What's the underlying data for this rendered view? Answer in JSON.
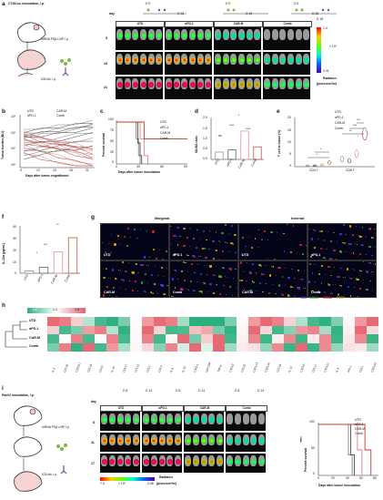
{
  "panels": {
    "a": {
      "label": "a",
      "model_text": "CT26-luc inoculation, i.p.",
      "treatment_text": "mRNA PSβ-LNP, i.p.",
      "icb_text": "ICB Ab, i.p.",
      "groups": [
        "UTD",
        "αPD-1",
        "CAR-M",
        "Comb"
      ],
      "days": [
        "9",
        "15",
        "21"
      ],
      "schedule_day_label": "day",
      "schedule_marks": [
        "D 9",
        "D 18",
        "D 9",
        "D 15",
        "D 9",
        "D 15",
        "D 18"
      ],
      "colorbar": {
        "max": "1.0",
        "min": "0.01",
        "unit": "× 10⁸",
        "title": "Radiance",
        "units": "(p/sec/cm²/sr)"
      }
    },
    "b": {
      "label": "b",
      "ylabel": "Tumor burden (BLI)",
      "xlabel": "Days after tumor engraftment",
      "legend": [
        "UTD",
        "CAR-M",
        "αPD-1",
        "Comb"
      ],
      "yticks": [
        "10⁹",
        "10⁸",
        "10⁷",
        "10⁶"
      ],
      "xticks": [
        "9",
        "12",
        "15",
        "18",
        "21"
      ]
    },
    "c": {
      "label": "c",
      "ylabel": "Percent survival",
      "xlabel": "Days after tumor inoculation",
      "legend": [
        "UTD",
        "αPD-1",
        "CAR-M",
        "Comb"
      ],
      "yticks": [
        "100",
        "75",
        "50",
        "25",
        "0"
      ],
      "xticks": [
        "0",
        "30",
        "60",
        "90"
      ]
    },
    "d": {
      "label": "d",
      "ylabel": "M1/M2 ratio",
      "categories": [
        "UTD",
        "αPD-1",
        "CAR-M",
        "Comb"
      ],
      "yticks": [
        "2.0",
        "1.5",
        "1.0",
        "0.5",
        "0.0"
      ],
      "sig": [
        "ns",
        "****",
        "*",
        "****"
      ]
    },
    "e": {
      "label": "e",
      "ylabel": "T cell in tumor (%)",
      "legend": [
        "UTD",
        "αPD-1",
        "CAR-M",
        "Comb"
      ],
      "groups": [
        "CD4 T",
        "CD8 T"
      ],
      "yticks": [
        "20",
        "15",
        "10",
        "5",
        "0"
      ],
      "sig": [
        "*",
        "*",
        "**",
        "***",
        "***"
      ]
    },
    "f": {
      "label": "f",
      "ylabel": "IL-12α (pg/mL)",
      "categories": [
        "UTD",
        "αPD-1",
        "CAR-M",
        "Comb"
      ],
      "yticks": [
        "40",
        "30",
        "20",
        "10",
        "0"
      ],
      "sig": [
        "*",
        "***",
        "**"
      ]
    },
    "g": {
      "label": "g",
      "titles": [
        "Marginal",
        "Internal"
      ],
      "tiles": [
        "UTD",
        "αPD-1",
        "UTD",
        "αPD-1",
        "CAR-M",
        "Comb",
        "CAR-M",
        "Comb"
      ],
      "markers": [
        "CD3",
        "CD11b",
        "CD11c",
        "F4/80"
      ]
    },
    "h": {
      "label": "h",
      "scale": [
        "0.6",
        "1.0",
        "1.6"
      ],
      "rows": [
        "UTD",
        "αPD-1",
        "CAR-M",
        "Comb"
      ],
      "cols": [
        "IL-2",
        "CCL20",
        "CX3CL1",
        "CCL19",
        "CCL5",
        "IL-10",
        "CCL17",
        "CCL12",
        "CCL2",
        "CCL3",
        "IL-6",
        "IL-15",
        "CXCL1",
        "GM-CSF",
        "TNF-α",
        "CXCL9",
        "CCL22",
        "CXCL13",
        "CXCL16",
        "CCL24",
        "IL-12",
        "CXCL5",
        "CCL11",
        "CXCL11",
        "IL-4",
        "IFN-γ",
        "CCL1",
        "CXCL10"
      ]
    },
    "i": {
      "label": "i",
      "model_text": "Pan02 inoculation, i.p.",
      "treatment_text": "mRNA PSβ-LNP, i.p.",
      "icb_text": "ICB Ab, i.p.",
      "groups": [
        "UTD",
        "αPD-1",
        "CAR-M",
        "Comb"
      ],
      "days": [
        "8",
        "11",
        "17"
      ],
      "schedule_day_label": "day",
      "schedule_marks": [
        "D 8",
        "D 14",
        "D 8",
        "D 14",
        "D 8",
        "D 14"
      ],
      "colorbar": {
        "max": "0.08",
        "min": "7.0",
        "unit": "× 10⁶",
        "title": "Radiance",
        "units": "(p/sec/cm²/sr)"
      }
    },
    "j": {
      "label": "j",
      "ylabel": "Percent survival",
      "xlabel": "Days after tumor inoculation",
      "legend": [
        "UTD",
        "αPD-1",
        "CAR-M",
        "Comb"
      ],
      "yticks": [
        "100",
        "50",
        "0"
      ],
      "xticks": [
        "0",
        "20",
        "40",
        "60",
        "80"
      ]
    }
  },
  "colors": {
    "UTD": "#808080",
    "aPD1": "#4a4a4a",
    "CARM": "#e08080",
    "Comb": "#c0392b"
  },
  "chart_data": [
    {
      "type": "line",
      "panel": "c",
      "title": "",
      "xlabel": "Days after tumor inoculation",
      "ylabel": "Percent survival",
      "ylim": [
        0,
        100
      ],
      "xlim": [
        0,
        90
      ],
      "series": [
        {
          "name": "UTD",
          "x": [
            0,
            22,
            25,
            28,
            30
          ],
          "y": [
            100,
            100,
            60,
            20,
            0
          ]
        },
        {
          "name": "αPD-1",
          "x": [
            0,
            24,
            27,
            30,
            32
          ],
          "y": [
            100,
            100,
            50,
            20,
            0
          ]
        },
        {
          "name": "CAR-M",
          "x": [
            0,
            27,
            30,
            35,
            40
          ],
          "y": [
            100,
            100,
            60,
            20,
            0
          ]
        },
        {
          "name": "Comb",
          "x": [
            0,
            30,
            35,
            90
          ],
          "y": [
            100,
            100,
            60,
            60
          ]
        }
      ]
    },
    {
      "type": "bar",
      "panel": "d",
      "title": "",
      "ylabel": "M1/M2 ratio",
      "categories": [
        "UTD",
        "αPD-1",
        "CAR-M",
        "Comb"
      ],
      "values": [
        0.35,
        0.45,
        1.35,
        0.6
      ],
      "ylim": [
        0,
        2.0
      ]
    },
    {
      "type": "bar",
      "panel": "f",
      "title": "",
      "ylabel": "IL-12α (pg/mL)",
      "categories": [
        "UTD",
        "αPD-1",
        "CAR-M",
        "Comb"
      ],
      "values": [
        2,
        5,
        18,
        30
      ],
      "ylim": [
        0,
        40
      ]
    },
    {
      "type": "line",
      "panel": "j",
      "title": "",
      "xlabel": "Days after tumor inoculation",
      "ylabel": "Percent survival",
      "ylim": [
        0,
        100
      ],
      "xlim": [
        0,
        80
      ],
      "series": [
        {
          "name": "UTD",
          "x": [
            0,
            35,
            40,
            45
          ],
          "y": [
            100,
            100,
            40,
            0
          ]
        },
        {
          "name": "αPD-1",
          "x": [
            0,
            38,
            43,
            48
          ],
          "y": [
            100,
            100,
            40,
            0
          ]
        },
        {
          "name": "CAR-M",
          "x": [
            0,
            45,
            52,
            58
          ],
          "y": [
            100,
            100,
            50,
            0
          ]
        },
        {
          "name": "Comb",
          "x": [
            0,
            55,
            62,
            70
          ],
          "y": [
            100,
            100,
            50,
            0
          ]
        }
      ]
    }
  ]
}
